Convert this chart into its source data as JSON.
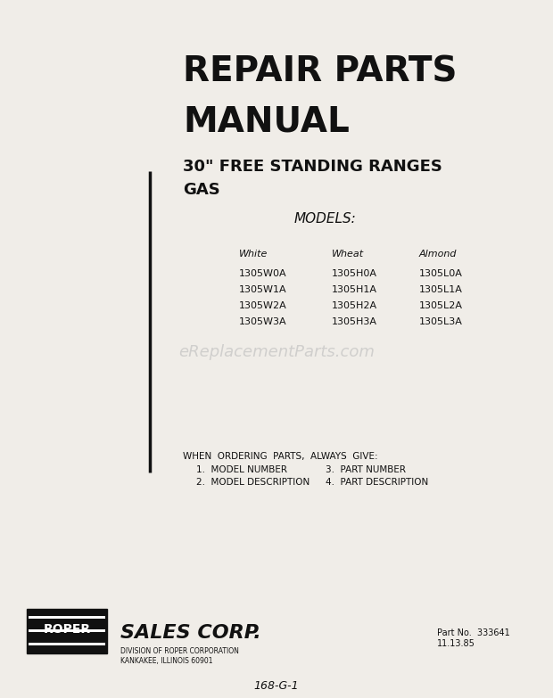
{
  "bg_color": "#f0ede8",
  "title_line1": "REPAIR PARTS",
  "title_line2": "MANUAL",
  "subtitle_line1": "30\" FREE STANDING RANGES",
  "subtitle_line2": "GAS",
  "models_label": "MODELS:",
  "col_headers": [
    "White",
    "Wheat",
    "Almond"
  ],
  "white_models": [
    "1305W0A",
    "1305W1A",
    "1305W2A",
    "1305W3A"
  ],
  "wheat_models": [
    "1305H0A",
    "1305H1A",
    "1305H2A",
    "1305H3A"
  ],
  "almond_models": [
    "1305L0A",
    "1305L1A",
    "1305L2A",
    "1305L3A"
  ],
  "watermark": "eReplacementParts.com",
  "ordering_title": "WHEN  ORDERING  PARTS,  ALWAYS  GIVE:",
  "ordering_items": [
    "1.  MODEL NUMBER",
    "2.  MODEL DESCRIPTION"
  ],
  "ordering_items_right": [
    "3.  PART NUMBER",
    "4.  PART DESCRIPTION"
  ],
  "roper_text": "ROPER",
  "sales_corp_text": "SALES CORP.",
  "division_text": "DIVISION OF ROPER CORPORATION",
  "address_text": "KANKAKEE, ILLINOIS 60901",
  "part_no_text": "Part No.  333641",
  "date_text": "11.13.85",
  "page_code": "168-G-1"
}
